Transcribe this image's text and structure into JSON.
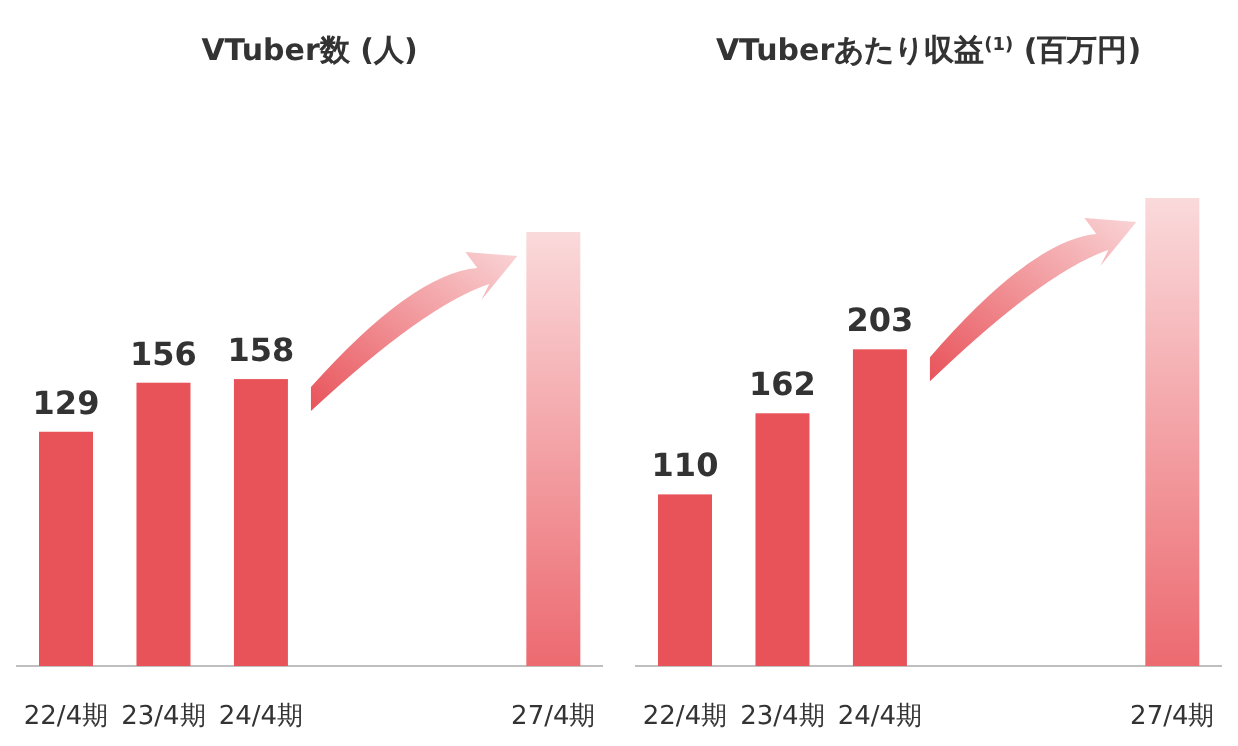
{
  "chart_data": [
    {
      "type": "bar",
      "title": "VTuber数 (人)",
      "categories": [
        "22/4期",
        "23/4期",
        "24/4期",
        null,
        null,
        "27/4期"
      ],
      "values": [
        129,
        156,
        158,
        null,
        null,
        239
      ],
      "value_labels": [
        "129",
        "156",
        "158",
        null,
        null,
        null
      ],
      "colors": [
        "#e8535a",
        "#e8535a",
        "#e8535a",
        "#e8535a",
        "#e8535a",
        "#ec6a70"
      ],
      "relative": false
    },
    {
      "type": "bar",
      "title": "VTuberあたり収益$^{(1)}$ (百万円)",
      "categories": [
        "22/4期",
        "23/4期",
        "24/4期",
        null,
        null,
        "27/4期"
      ],
      "values": [
        110,
        162,
        203,
        null,
        null,
        300
      ],
      "value_labels": [
        "110",
        "162",
        "203",
        null,
        null,
        null
      ],
      "colors": [
        "#e8535a",
        "#e8535a",
        "#e8535a",
        "#e8535a",
        "#e8535a",
        "#ec6a70"
      ],
      "relative": false
    }
  ]
}
